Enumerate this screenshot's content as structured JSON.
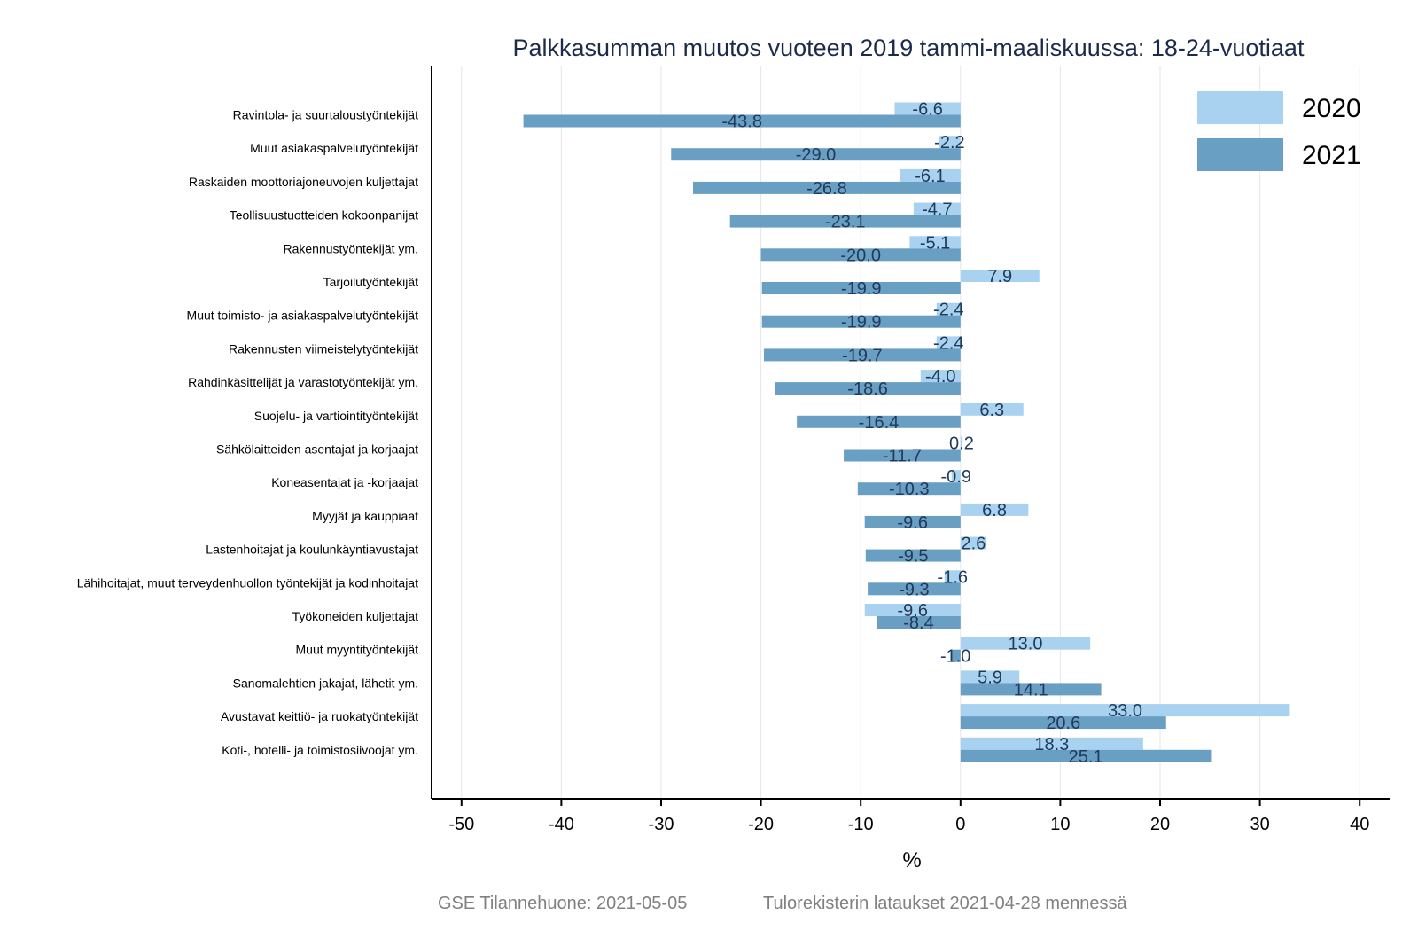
{
  "chart_data": {
    "type": "bar",
    "orientation": "horizontal",
    "title": "Palkkasumman muutos vuoteen 2019 tammi-maaliskuussa: 18-24-vuotiaat",
    "xlabel": "%",
    "ylabel": "",
    "xlim": [
      -53,
      43
    ],
    "xticks": [
      -50,
      -40,
      -30,
      -20,
      -10,
      0,
      10,
      20,
      30,
      40
    ],
    "grid": true,
    "legend_position": "top-right",
    "categories": [
      "Ravintola- ja suurtaloustyöntekijät",
      "Muut asiakaspalvelutyöntekijät",
      "Raskaiden moottoriajoneuvojen kuljettajat",
      "Teollisuustuotteiden kokoonpanijat",
      "Rakennustyöntekijät ym.",
      "Tarjoilutyöntekijät",
      "Muut toimisto- ja asiakaspalvelutyöntekijät",
      "Rakennusten viimeistelytyöntekijät",
      "Rahdinkäsittelijät ja varastotyöntekijät ym.",
      "Suojelu- ja vartiointityöntekijät",
      "Sähkölaitteiden asentajat ja korjaajat",
      "Koneasentajat ja -korjaajat",
      "Myyjät ja kauppiaat",
      "Lastenhoitajat ja koulunkäyntiavustajat",
      "Lähihoitajat, muut terveydenhuollon työntekijät ja kodinhoitajat",
      "Työkoneiden kuljettajat",
      "Muut myyntityöntekijät",
      "Sanomalehtien jakajat, lähetit ym.",
      "Avustavat keittiö- ja ruokatyöntekijät",
      "Koti-, hotelli- ja toimistosiivoojat ym."
    ],
    "series": [
      {
        "name": "2020",
        "color": "#a8d2f0",
        "values": [
          -6.6,
          -2.2,
          -6.1,
          -4.7,
          -5.1,
          7.9,
          -2.4,
          -2.4,
          -4.0,
          6.3,
          0.2,
          -0.9,
          6.8,
          2.6,
          -1.6,
          -9.6,
          13.0,
          5.9,
          33.0,
          18.3
        ],
        "labels": [
          "-6.6",
          "-2.2",
          "-6.1",
          "-4.7",
          "-5.1",
          "7.9",
          "-2.4",
          "-2.4",
          "-4.0",
          "6.3",
          "0.2",
          "-0.9",
          "6.8",
          "2.6",
          "-1.6",
          "-9.6",
          "13.0",
          "5.9",
          "33.0",
          "18.3"
        ]
      },
      {
        "name": "2021",
        "color": "#6a9fc4",
        "values": [
          -43.8,
          -29.0,
          -26.8,
          -23.1,
          -20.0,
          -19.9,
          -19.9,
          -19.7,
          -18.6,
          -16.4,
          -11.7,
          -10.3,
          -9.6,
          -9.5,
          -9.3,
          -8.4,
          -1.0,
          14.1,
          20.6,
          25.1
        ],
        "labels": [
          "-43.8",
          "-29.0",
          "-26.8",
          "-23.1",
          "-20.0",
          "-19.9",
          "-19.9",
          "-19.7",
          "-18.6",
          "-16.4",
          "-11.7",
          "-10.3",
          "-9.6",
          "-9.5",
          "-9.3",
          "-8.4",
          "-1.0",
          "14.1",
          "20.6",
          "25.1"
        ]
      }
    ]
  },
  "footer": {
    "source": "GSE Tilannehuone: 2021-05-05",
    "note": "Tulorekisterin lataukset 2021-04-28 mennessä"
  }
}
